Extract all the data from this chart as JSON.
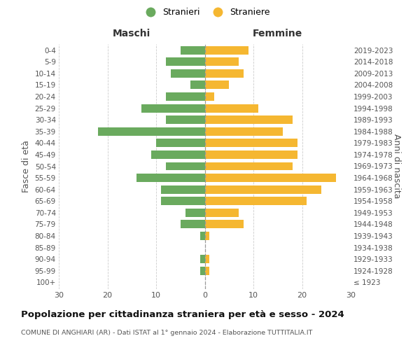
{
  "age_groups": [
    "100+",
    "95-99",
    "90-94",
    "85-89",
    "80-84",
    "75-79",
    "70-74",
    "65-69",
    "60-64",
    "55-59",
    "50-54",
    "45-49",
    "40-44",
    "35-39",
    "30-34",
    "25-29",
    "20-24",
    "15-19",
    "10-14",
    "5-9",
    "0-4"
  ],
  "birth_years": [
    "≤ 1923",
    "1924-1928",
    "1929-1933",
    "1934-1938",
    "1939-1943",
    "1944-1948",
    "1949-1953",
    "1954-1958",
    "1959-1963",
    "1964-1968",
    "1969-1973",
    "1974-1978",
    "1979-1983",
    "1984-1988",
    "1989-1993",
    "1994-1998",
    "1999-2003",
    "2004-2008",
    "2009-2013",
    "2014-2018",
    "2019-2023"
  ],
  "males": [
    0,
    1,
    1,
    0,
    1,
    5,
    4,
    9,
    9,
    14,
    8,
    11,
    10,
    22,
    8,
    13,
    8,
    3,
    7,
    8,
    5
  ],
  "females": [
    0,
    1,
    1,
    0,
    1,
    8,
    7,
    21,
    24,
    27,
    18,
    19,
    19,
    16,
    18,
    11,
    2,
    5,
    8,
    7,
    9
  ],
  "male_color": "#6aaa5e",
  "female_color": "#f5b731",
  "background_color": "#ffffff",
  "grid_color": "#cccccc",
  "title": "Popolazione per cittadinanza straniera per età e sesso - 2024",
  "subtitle": "COMUNE DI ANGHIARI (AR) - Dati ISTAT al 1° gennaio 2024 - Elaborazione TUTTITALIA.IT",
  "xlabel_left": "Maschi",
  "xlabel_right": "Femmine",
  "ylabel_left": "Fasce di età",
  "ylabel_right": "Anni di nascita",
  "legend_stranieri": "Stranieri",
  "legend_straniere": "Straniere",
  "xlim": 30
}
